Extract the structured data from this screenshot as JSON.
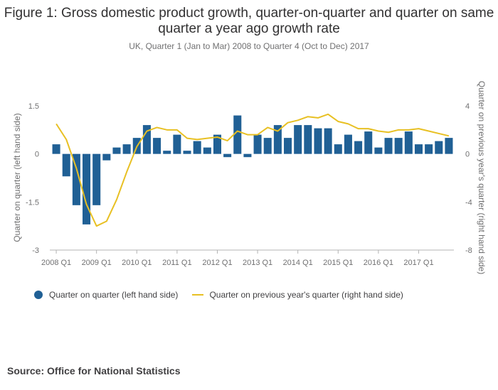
{
  "title": "Figure 1: Gross domestic product growth, quarter-on-quarter and quarter on same quarter a year ago growth rate",
  "subtitle": "UK, Quarter 1 (Jan to Mar) 2008 to Quarter 4 (Oct to Dec) 2017",
  "source": "Source: Office for National Statistics",
  "colors": {
    "bar": "#206095",
    "line": "#e8c023",
    "axis": "#b3b3b3",
    "text": "#707071"
  },
  "chart_data": {
    "type": "bar",
    "combo": "bar+line",
    "ylabel": "Quarter on quarter (left hand side)",
    "y2label": "Quarter on previous year's quarter (right hand side)",
    "ylim": [
      -3,
      1.5
    ],
    "y2lim": [
      -8,
      4
    ],
    "yticks": [
      "1.5",
      "0",
      "-1.5",
      "-3"
    ],
    "y2ticks": [
      "4",
      "0",
      "-4",
      "-8"
    ],
    "xtick_labels": [
      "2008 Q1",
      "2009 Q1",
      "2010 Q1",
      "2011 Q1",
      "2012 Q1",
      "2013 Q1",
      "2014 Q1",
      "2015 Q1",
      "2016 Q1",
      "2017 Q1"
    ],
    "legend_position": "bottom-left",
    "categories": [
      "2008 Q1",
      "2008 Q2",
      "2008 Q3",
      "2008 Q4",
      "2009 Q1",
      "2009 Q2",
      "2009 Q3",
      "2009 Q4",
      "2010 Q1",
      "2010 Q2",
      "2010 Q3",
      "2010 Q4",
      "2011 Q1",
      "2011 Q2",
      "2011 Q3",
      "2011 Q4",
      "2012 Q1",
      "2012 Q2",
      "2012 Q3",
      "2012 Q4",
      "2013 Q1",
      "2013 Q2",
      "2013 Q3",
      "2013 Q4",
      "2014 Q1",
      "2014 Q2",
      "2014 Q3",
      "2014 Q4",
      "2015 Q1",
      "2015 Q2",
      "2015 Q3",
      "2015 Q4",
      "2016 Q1",
      "2016 Q2",
      "2016 Q3",
      "2016 Q4",
      "2017 Q1",
      "2017 Q2",
      "2017 Q3",
      "2017 Q4"
    ],
    "series": [
      {
        "name": "Quarter on quarter (left hand side)",
        "type": "bar",
        "axis": "left",
        "values": [
          0.3,
          -0.7,
          -1.6,
          -2.2,
          -1.6,
          -0.2,
          0.2,
          0.3,
          0.5,
          0.9,
          0.5,
          0.1,
          0.6,
          0.1,
          0.4,
          0.2,
          0.6,
          -0.1,
          1.2,
          -0.1,
          0.6,
          0.5,
          0.9,
          0.5,
          0.9,
          0.9,
          0.8,
          0.8,
          0.3,
          0.6,
          0.4,
          0.7,
          0.2,
          0.5,
          0.5,
          0.7,
          0.3,
          0.3,
          0.4,
          0.5
        ]
      },
      {
        "name": "Quarter on previous year's quarter (right hand side)",
        "type": "line",
        "axis": "right",
        "values": [
          2.5,
          1.2,
          -1.2,
          -4.2,
          -6.0,
          -5.6,
          -3.8,
          -1.5,
          0.6,
          1.9,
          2.2,
          2.0,
          2.0,
          1.3,
          1.2,
          1.3,
          1.4,
          1.1,
          1.9,
          1.6,
          1.6,
          2.2,
          1.9,
          2.6,
          2.8,
          3.1,
          3.0,
          3.3,
          2.7,
          2.5,
          2.1,
          2.1,
          1.9,
          1.8,
          2.0,
          2.0,
          2.1,
          1.9,
          1.7,
          1.5
        ]
      }
    ]
  }
}
